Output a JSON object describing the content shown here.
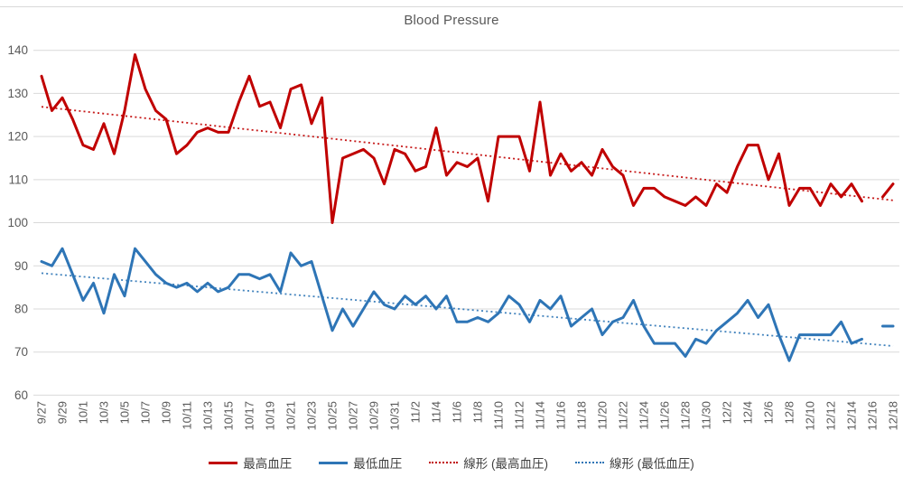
{
  "chart": {
    "title": "Blood Pressure",
    "axis_color": "#595959",
    "grid_color": "#d9d9d9",
    "y_ticks": [
      140,
      130,
      120,
      110,
      100,
      90,
      80,
      70,
      60
    ]
  },
  "chart_data": {
    "type": "line",
    "title": "Blood Pressure",
    "grid": true,
    "legend_position": "bottom",
    "ylim": [
      60,
      140
    ],
    "y_tick_step": 10,
    "x_tick_step": 2,
    "x": [
      "9/27",
      "9/28",
      "9/29",
      "9/30",
      "10/1",
      "10/2",
      "10/3",
      "10/4",
      "10/5",
      "10/6",
      "10/7",
      "10/8",
      "10/9",
      "10/10",
      "10/11",
      "10/12",
      "10/13",
      "10/14",
      "10/15",
      "10/16",
      "10/17",
      "10/18",
      "10/19",
      "10/20",
      "10/21",
      "10/22",
      "10/23",
      "10/24",
      "10/25",
      "10/26",
      "10/27",
      "10/28",
      "10/29",
      "10/30",
      "10/31",
      "11/1",
      "11/2",
      "11/3",
      "11/4",
      "11/5",
      "11/6",
      "11/7",
      "11/8",
      "11/9",
      "11/10",
      "11/11",
      "11/12",
      "11/13",
      "11/14",
      "11/15",
      "11/16",
      "11/17",
      "11/18",
      "11/19",
      "11/20",
      "11/21",
      "11/22",
      "11/23",
      "11/24",
      "11/25",
      "11/26",
      "11/27",
      "11/28",
      "11/29",
      "11/30",
      "12/1",
      "12/2",
      "12/3",
      "12/4",
      "12/5",
      "12/6",
      "12/7",
      "12/8",
      "12/9",
      "12/10",
      "12/11",
      "12/12",
      "12/13",
      "12/14",
      "12/15",
      "12/16",
      "12/17",
      "12/18"
    ],
    "series": [
      {
        "name": "最高血圧",
        "color": "#c00000",
        "style": "solid",
        "values": [
          134,
          126,
          129,
          124,
          118,
          117,
          123,
          116,
          126,
          139,
          131,
          126,
          124,
          116,
          118,
          121,
          122,
          121,
          121,
          128,
          134,
          127,
          128,
          122,
          131,
          132,
          123,
          129,
          100,
          115,
          116,
          117,
          115,
          109,
          117,
          116,
          112,
          113,
          122,
          111,
          114,
          113,
          115,
          105,
          120,
          120,
          120,
          112,
          128,
          111,
          116,
          112,
          114,
          111,
          117,
          113,
          111,
          104,
          108,
          108,
          106,
          105,
          104,
          106,
          104,
          109,
          107,
          113,
          118,
          118,
          110,
          116,
          104,
          108,
          108,
          104,
          109,
          106,
          109,
          105,
          null,
          106,
          109
        ]
      },
      {
        "name": "最低血圧",
        "color": "#2e75b6",
        "style": "solid",
        "values": [
          91,
          90,
          94,
          88,
          82,
          86,
          79,
          88,
          83,
          94,
          91,
          88,
          86,
          85,
          86,
          84,
          86,
          84,
          85,
          88,
          88,
          87,
          88,
          84,
          93,
          90,
          91,
          83,
          75,
          80,
          76,
          80,
          84,
          81,
          80,
          83,
          81,
          83,
          80,
          83,
          77,
          77,
          78,
          77,
          79,
          83,
          81,
          77,
          82,
          80,
          83,
          76,
          78,
          80,
          74,
          77,
          78,
          82,
          76,
          72,
          72,
          72,
          69,
          73,
          72,
          75,
          77,
          79,
          82,
          78,
          81,
          74,
          68,
          74,
          74,
          74,
          74,
          77,
          72,
          73,
          null,
          76,
          76
        ]
      },
      {
        "name": "線形 (最高血圧)",
        "color": "#c00000",
        "style": "dotted",
        "trend": {
          "start": 126.9,
          "end": 105.2
        }
      },
      {
        "name": "線形 (最低血圧)",
        "color": "#2e75b6",
        "style": "dotted",
        "trend": {
          "start": 88.3,
          "end": 71.4
        }
      }
    ]
  }
}
